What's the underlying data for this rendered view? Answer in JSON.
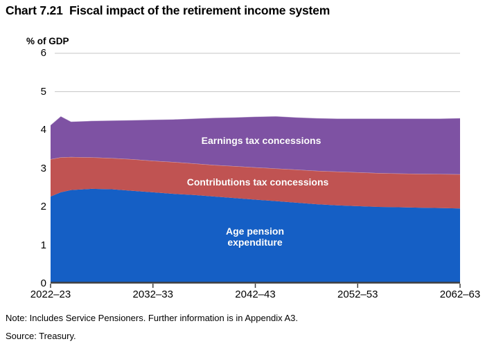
{
  "header": {
    "title": "Chart 7.21  Fiscal impact of the retirement income system"
  },
  "axis": {
    "unit_label": "% of GDP"
  },
  "area_labels": {
    "earnings": "Earnings tax concessions",
    "contributions": "Contributions tax concessions",
    "age_pension": "Age pension\nexpenditure"
  },
  "footer": {
    "note": "Note: Includes Service Pensioners. Further information is in Appendix A3.",
    "source": "Source: Treasury."
  },
  "chart_data": {
    "type": "area",
    "stacked": true,
    "title": "Chart 7.21  Fiscal impact of the retirement income system",
    "ylabel": "% of GDP",
    "ylim": [
      0,
      6
    ],
    "y_ticks": [
      0,
      1,
      2,
      3,
      4,
      5,
      6
    ],
    "x_ticks": [
      2022,
      2032,
      2042,
      2052,
      2062
    ],
    "x_tick_labels": [
      "2022–23",
      "2032–33",
      "2042–43",
      "2052–53",
      "2062–63"
    ],
    "xlim": [
      2022,
      2062
    ],
    "grid": "horizontal",
    "legend_position": "labels-inside-areas",
    "x": [
      2022,
      2023,
      2024,
      2026,
      2028,
      2030,
      2032,
      2034,
      2036,
      2038,
      2040,
      2042,
      2044,
      2046,
      2048,
      2050,
      2052,
      2054,
      2056,
      2058,
      2060,
      2062
    ],
    "series": [
      {
        "name": "Age pension expenditure",
        "color": "#155FC5",
        "values": [
          2.27,
          2.38,
          2.44,
          2.47,
          2.46,
          2.42,
          2.38,
          2.34,
          2.31,
          2.27,
          2.23,
          2.19,
          2.15,
          2.11,
          2.07,
          2.04,
          2.02,
          2.0,
          1.99,
          1.98,
          1.97,
          1.96
        ]
      },
      {
        "name": "Contributions tax concessions",
        "color": "#C05352",
        "values": [
          0.97,
          0.91,
          0.86,
          0.82,
          0.81,
          0.82,
          0.82,
          0.83,
          0.82,
          0.82,
          0.83,
          0.84,
          0.85,
          0.86,
          0.87,
          0.88,
          0.88,
          0.88,
          0.88,
          0.88,
          0.885,
          0.89
        ]
      },
      {
        "name": "Earnings tax concessions",
        "color": "#7E52A3",
        "values": [
          0.89,
          1.07,
          0.92,
          0.95,
          0.98,
          1.02,
          1.07,
          1.11,
          1.17,
          1.23,
          1.27,
          1.32,
          1.36,
          1.36,
          1.37,
          1.38,
          1.4,
          1.42,
          1.43,
          1.44,
          1.445,
          1.46
        ]
      }
    ],
    "style": {
      "axis_color": "#3F3F3F",
      "gridline_color": "#C6C6C6",
      "band_separator_color": "rgba(255,255,255,0.45)",
      "background": "#FFFFFF"
    }
  }
}
